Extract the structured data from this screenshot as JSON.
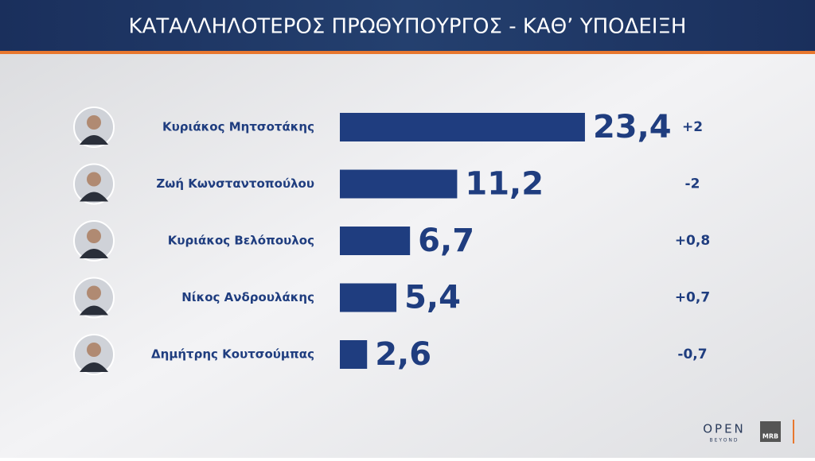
{
  "chart_data": {
    "type": "hbar",
    "title": "ΚΑΤΑΛΛΗΛΟΤΕΡΟΣ  ΠΡΩΘΥΠΟΥΡΓΟΣ - ΚΑΘ’ ΥΠΟΔΕΙΞΗ",
    "categories": [
      "Κυριάκος Μητσοτάκης",
      "Ζωή Κωνσταντοπούλου",
      "Κυριάκος Βελόπουλος",
      "Νίκος Ανδρουλάκης",
      "Δημήτρης Κουτσούμπας"
    ],
    "values": [
      23.4,
      11.2,
      6.7,
      5.4,
      2.6
    ],
    "value_labels": [
      "23,4",
      "11,2",
      "6,7",
      "5,4",
      "2,6"
    ],
    "change_labels": [
      "+2",
      "-2",
      "+0,8",
      "+0,7",
      "-0,7"
    ],
    "color": "#1f3d7f",
    "xlim": [
      0,
      25
    ]
  },
  "branding": {
    "logo": "OPEN",
    "logo_sub": "BEYOND",
    "pollster": "MRB"
  }
}
